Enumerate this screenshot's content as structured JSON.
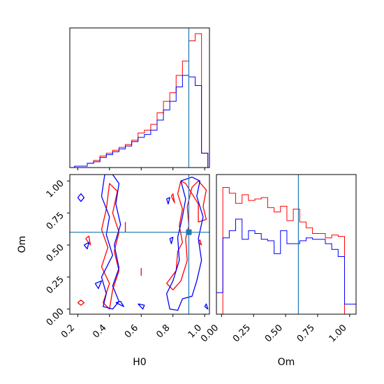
{
  "chart_data": {
    "type": "corner",
    "parameters": [
      "H0",
      "Om"
    ],
    "truths": {
      "H0": 0.9,
      "Om": 0.6
    },
    "truth_color": "#1f77b4",
    "series": [
      {
        "color": "#ff0000"
      },
      {
        "color": "#0000ff"
      }
    ],
    "axes": {
      "H0": {
        "lim": [
          0.15,
          1.03
        ],
        "ticks": [
          0.2,
          0.4,
          0.6,
          0.8,
          1.0
        ],
        "tick_labels": [
          "0.2",
          "0.4",
          "0.6",
          "0.8",
          "1.0"
        ]
      },
      "Om": {
        "lim": [
          -0.04,
          1.05
        ],
        "ticks": [
          0.0,
          0.25,
          0.5,
          0.75,
          1.0
        ],
        "tick_labels": [
          "0.00",
          "0.25",
          "0.50",
          "0.75",
          "1.00"
        ]
      }
    },
    "hist_H0": {
      "bin_edges": [
        0.18,
        0.22,
        0.26,
        0.3,
        0.34,
        0.38,
        0.42,
        0.46,
        0.5,
        0.54,
        0.58,
        0.62,
        0.66,
        0.7,
        0.74,
        0.78,
        0.82,
        0.86,
        0.9,
        0.94,
        0.98,
        1.02
      ],
      "red": [
        0.01,
        0.01,
        0.03,
        0.05,
        0.08,
        0.1,
        0.12,
        0.14,
        0.16,
        0.19,
        0.24,
        0.26,
        0.3,
        0.38,
        0.46,
        0.52,
        0.64,
        0.74,
        0.88,
        0.93,
        0.1
      ],
      "blue": [
        0.01,
        0.01,
        0.03,
        0.04,
        0.07,
        0.09,
        0.11,
        0.13,
        0.15,
        0.18,
        0.21,
        0.23,
        0.26,
        0.33,
        0.4,
        0.46,
        0.56,
        0.64,
        0.63,
        0.57,
        0.1
      ]
    },
    "hist_Om": {
      "bin_edges": [
        -0.04,
        0.01,
        0.06,
        0.11,
        0.16,
        0.21,
        0.26,
        0.31,
        0.36,
        0.41,
        0.46,
        0.51,
        0.56,
        0.61,
        0.66,
        0.71,
        0.76,
        0.81,
        0.86,
        0.91,
        0.96,
        1.05
      ],
      "red": [
        0.0,
        0.88,
        0.84,
        0.77,
        0.83,
        0.79,
        0.8,
        0.81,
        0.74,
        0.71,
        0.75,
        0.65,
        0.73,
        0.64,
        0.6,
        0.56,
        0.56,
        0.53,
        0.55,
        0.54,
        0.0
      ],
      "blue": [
        0.15,
        0.53,
        0.58,
        0.66,
        0.52,
        0.58,
        0.56,
        0.52,
        0.51,
        0.42,
        0.58,
        0.49,
        0.49,
        0.51,
        0.53,
        0.52,
        0.52,
        0.49,
        0.45,
        0.4,
        0.07
      ]
    },
    "contours_2d": {
      "red": [
        [
          [
            0.2,
            0.05
          ],
          [
            0.22,
            0.03
          ],
          [
            0.24,
            0.05
          ],
          [
            0.22,
            0.07
          ],
          [
            0.2,
            0.05
          ]
        ],
        [
          [
            0.38,
            0.78
          ],
          [
            0.35,
            0.62
          ],
          [
            0.39,
            0.48
          ],
          [
            0.35,
            0.33
          ],
          [
            0.4,
            0.2
          ],
          [
            0.36,
            0.05
          ],
          [
            0.4,
            0.0
          ],
          [
            0.42,
            0.15
          ],
          [
            0.46,
            0.3
          ],
          [
            0.43,
            0.45
          ],
          [
            0.46,
            0.6
          ],
          [
            0.42,
            0.75
          ],
          [
            0.45,
            0.92
          ],
          [
            0.4,
            0.98
          ],
          [
            0.38,
            0.78
          ]
        ],
        [
          [
            0.25,
            0.55
          ],
          [
            0.28,
            0.5
          ],
          [
            0.27,
            0.57
          ],
          [
            0.25,
            0.55
          ]
        ],
        [
          [
            0.5,
            0.6
          ],
          [
            0.5,
            0.68
          ]
        ],
        [
          [
            0.6,
            0.26
          ],
          [
            0.6,
            0.32
          ]
        ],
        [
          [
            0.85,
            1.0
          ],
          [
            0.83,
            0.9
          ],
          [
            0.86,
            0.78
          ],
          [
            0.84,
            0.65
          ],
          [
            0.86,
            0.52
          ],
          [
            0.83,
            0.45
          ],
          [
            0.82,
            0.3
          ],
          [
            0.76,
            0.2
          ],
          [
            0.8,
            0.15
          ],
          [
            0.85,
            0.22
          ],
          [
            0.89,
            0.38
          ],
          [
            0.88,
            0.55
          ],
          [
            0.9,
            0.65
          ],
          [
            0.89,
            0.8
          ],
          [
            0.92,
            0.95
          ],
          [
            0.96,
            1.0
          ],
          [
            1.01,
            0.93
          ],
          [
            0.99,
            0.8
          ],
          [
            1.01,
            0.7
          ],
          [
            0.96,
            0.68
          ],
          [
            0.96,
            0.82
          ],
          [
            0.93,
            0.88
          ],
          [
            0.88,
            0.98
          ],
          [
            0.85,
            1.0
          ]
        ],
        [
          [
            0.79,
            0.88
          ],
          [
            0.81,
            0.83
          ],
          [
            0.8,
            0.9
          ],
          [
            0.79,
            0.88
          ]
        ],
        [
          [
            0.96,
            0.52
          ],
          [
            0.98,
            0.5
          ],
          [
            0.97,
            0.54
          ],
          [
            0.96,
            0.52
          ]
        ]
      ],
      "blue": [
        [
          [
            0.2,
            0.87
          ],
          [
            0.22,
            0.84
          ],
          [
            0.24,
            0.87
          ],
          [
            0.22,
            0.9
          ],
          [
            0.2,
            0.87
          ]
        ],
        [
          [
            0.37,
            1.05
          ],
          [
            0.35,
            0.88
          ],
          [
            0.4,
            0.72
          ],
          [
            0.38,
            0.58
          ],
          [
            0.42,
            0.42
          ],
          [
            0.35,
            0.25
          ],
          [
            0.38,
            0.12
          ],
          [
            0.36,
            0.02
          ],
          [
            0.42,
            0.0
          ],
          [
            0.46,
            0.06
          ],
          [
            0.42,
            0.18
          ],
          [
            0.46,
            0.32
          ],
          [
            0.43,
            0.5
          ],
          [
            0.47,
            0.66
          ],
          [
            0.44,
            0.82
          ],
          [
            0.46,
            0.98
          ],
          [
            0.42,
            1.05
          ],
          [
            0.37,
            1.05
          ]
        ],
        [
          [
            0.24,
            0.5
          ],
          [
            0.26,
            0.47
          ],
          [
            0.27,
            0.52
          ],
          [
            0.24,
            0.5
          ]
        ],
        [
          [
            0.31,
            0.2
          ],
          [
            0.33,
            0.16
          ],
          [
            0.35,
            0.22
          ],
          [
            0.31,
            0.2
          ]
        ],
        [
          [
            0.44,
            0.05
          ],
          [
            0.49,
            0.02
          ],
          [
            0.47,
            0.06
          ],
          [
            0.44,
            0.05
          ]
        ],
        [
          [
            0.58,
            0.04
          ],
          [
            0.61,
            0.0
          ],
          [
            0.62,
            0.03
          ],
          [
            0.58,
            0.04
          ]
        ],
        [
          [
            0.85,
            1.0
          ],
          [
            0.88,
            0.86
          ],
          [
            0.86,
            0.72
          ],
          [
            0.83,
            0.56
          ],
          [
            0.84,
            0.38
          ],
          [
            0.8,
            0.22
          ],
          [
            0.76,
            0.12
          ],
          [
            0.78,
            0.0
          ],
          [
            0.83,
            -0.01
          ],
          [
            0.86,
            0.08
          ],
          [
            0.92,
            0.1
          ],
          [
            0.95,
            0.22
          ],
          [
            0.98,
            0.38
          ],
          [
            0.96,
            0.55
          ],
          [
            0.99,
            0.72
          ],
          [
            0.95,
            0.88
          ],
          [
            0.97,
            1.0
          ],
          [
            0.92,
            1.03
          ],
          [
            0.85,
            1.0
          ]
        ],
        [
          [
            0.78,
            0.55
          ],
          [
            0.79,
            0.51
          ],
          [
            0.8,
            0.56
          ],
          [
            0.78,
            0.55
          ]
        ],
        [
          [
            0.76,
            0.86
          ],
          [
            0.77,
            0.82
          ],
          [
            0.78,
            0.87
          ],
          [
            0.76,
            0.86
          ]
        ],
        [
          [
            1.0,
            0.02
          ],
          [
            1.02,
            0.0
          ],
          [
            1.01,
            0.04
          ],
          [
            1.0,
            0.02
          ]
        ]
      ]
    }
  }
}
